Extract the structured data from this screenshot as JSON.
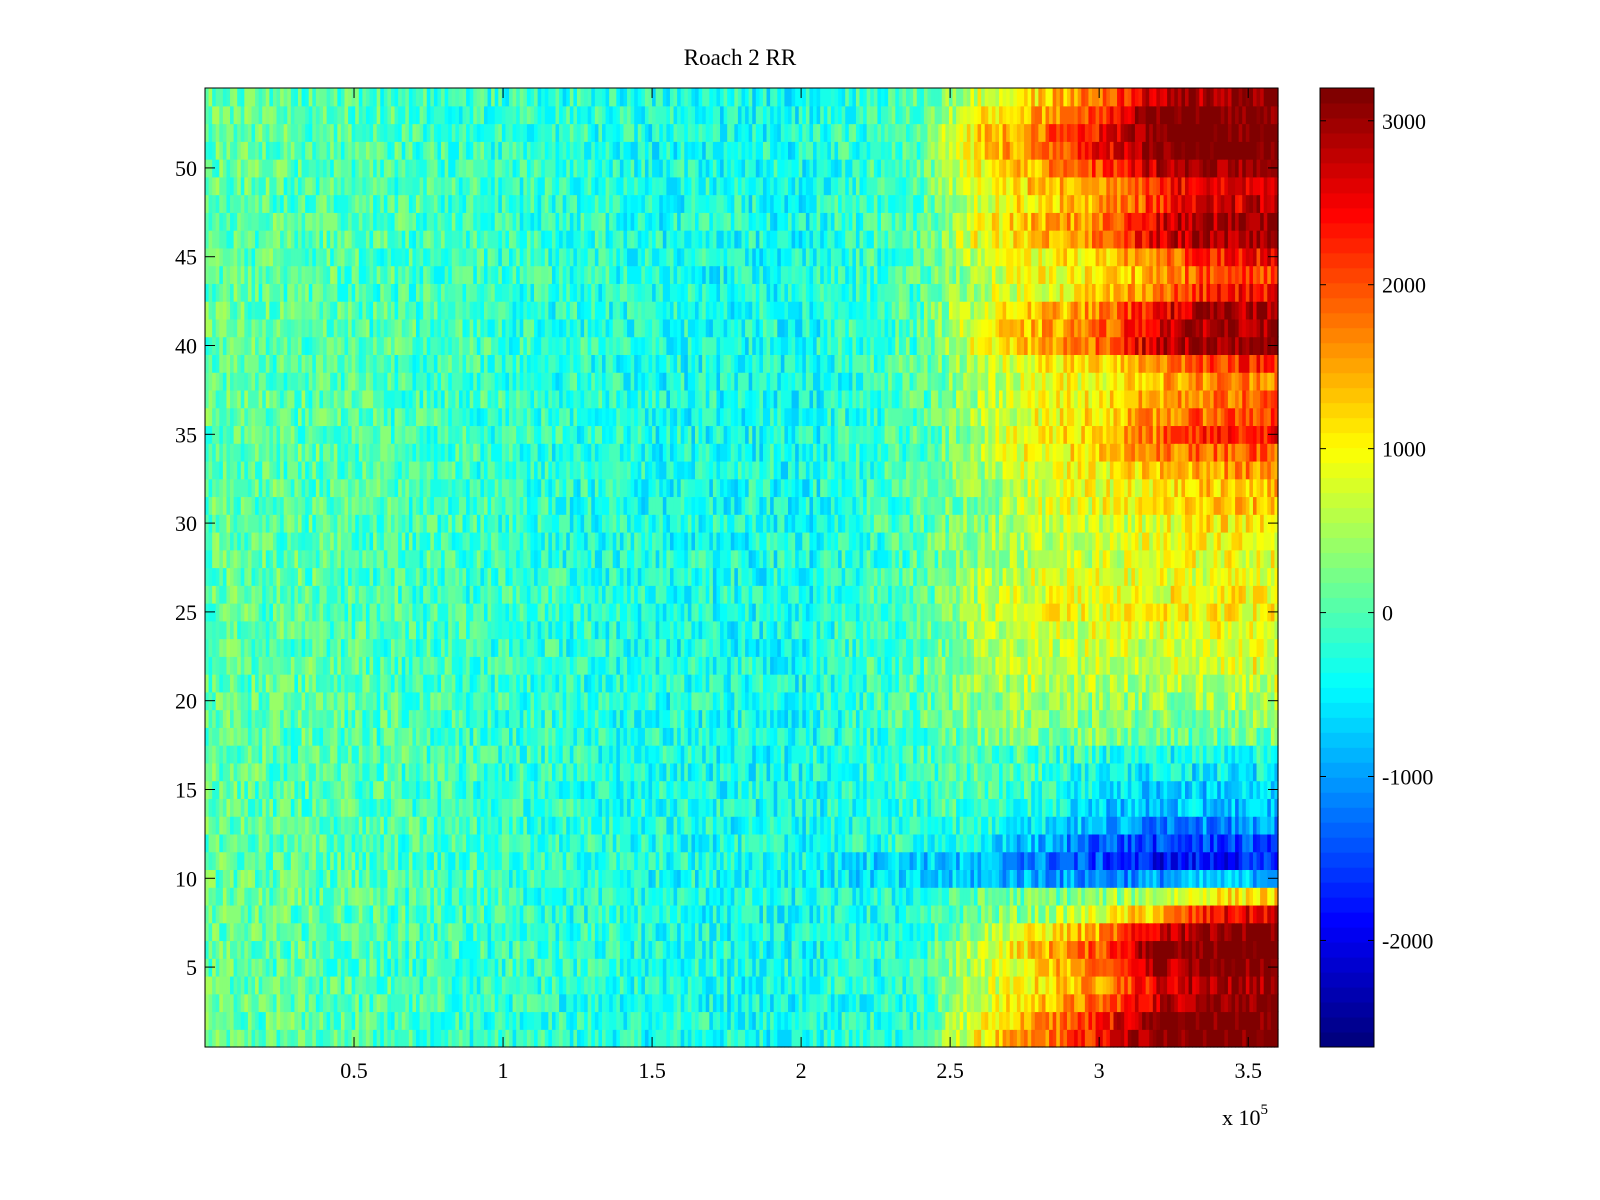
{
  "chart_data": {
    "type": "heatmap",
    "title": "Roach 2 RR",
    "xlabel": "",
    "ylabel": "",
    "x_exponent_label": "x 10",
    "x_exponent": "5",
    "xlim": [
      0,
      360000
    ],
    "ylim": [
      0.5,
      54.5
    ],
    "clim": [
      -2650,
      3200
    ],
    "colormap": "jet",
    "x_ticks": [
      50000,
      100000,
      150000,
      200000,
      250000,
      300000,
      350000
    ],
    "x_tick_labels": [
      "0.5",
      "1",
      "1.5",
      "2",
      "2.5",
      "3",
      "3.5"
    ],
    "y_ticks": [
      5,
      10,
      15,
      20,
      25,
      30,
      35,
      40,
      45,
      50
    ],
    "y_tick_labels": [
      "5",
      "10",
      "15",
      "20",
      "25",
      "30",
      "35",
      "40",
      "45",
      "50"
    ],
    "colorbar_ticks": [
      -2000,
      -1000,
      0,
      1000,
      2000,
      3000
    ],
    "colorbar_tick_labels": [
      "-2000",
      "-1000",
      "0",
      "1000",
      "2000",
      "3000"
    ],
    "rows": 54,
    "baseline_x": [
      0,
      50000,
      100000,
      150000,
      200000
    ],
    "baseline_values": [
      100,
      0,
      -150,
      -300,
      -350
    ],
    "tail_x": [
      240000,
      260000,
      280000,
      300000,
      320000,
      340000,
      360000
    ],
    "row_tail_values": [
      [
        -100,
        1000,
        1700,
        2300,
        3300,
        3300,
        3300
      ],
      [
        -100,
        900,
        1600,
        2200,
        3300,
        3300,
        3300
      ],
      [
        -150,
        700,
        1300,
        1800,
        2800,
        3200,
        3300
      ],
      [
        -150,
        600,
        1100,
        1600,
        2600,
        3000,
        3100
      ],
      [
        -150,
        600,
        1200,
        1700,
        2900,
        3200,
        3300
      ],
      [
        -200,
        700,
        1400,
        2000,
        3300,
        3300,
        3300
      ],
      [
        -250,
        500,
        1000,
        1500,
        2700,
        3200,
        3300
      ],
      [
        -300,
        200,
        400,
        800,
        1400,
        2400,
        2600
      ],
      [
        -300,
        100,
        200,
        300,
        600,
        1100,
        1200
      ],
      [
        -800,
        -800,
        -900,
        -1100,
        -1000,
        -800,
        -800
      ],
      [
        -700,
        -900,
        -1200,
        -1500,
        -1900,
        -1800,
        -1700
      ],
      [
        -200,
        -500,
        -900,
        -1300,
        -1600,
        -1500,
        -1500
      ],
      [
        -200,
        -200,
        -500,
        -900,
        -1100,
        -1100,
        -1100
      ],
      [
        -150,
        -100,
        -300,
        -700,
        -800,
        -800,
        -800
      ],
      [
        -100,
        0,
        -200,
        -500,
        -700,
        -700,
        -700
      ],
      [
        -100,
        0,
        -100,
        -400,
        -500,
        -500,
        -500
      ],
      [
        -100,
        0,
        -100,
        -200,
        -300,
        -300,
        -300
      ],
      [
        -50,
        200,
        300,
        200,
        100,
        100,
        200
      ],
      [
        0,
        300,
        400,
        300,
        300,
        300,
        400
      ],
      [
        0,
        400,
        500,
        400,
        400,
        500,
        600
      ],
      [
        0,
        400,
        600,
        500,
        500,
        600,
        700
      ],
      [
        0,
        500,
        700,
        700,
        800,
        800,
        900
      ],
      [
        0,
        500,
        700,
        700,
        700,
        800,
        900
      ],
      [
        0,
        500,
        800,
        800,
        800,
        900,
        900
      ],
      [
        0,
        600,
        900,
        900,
        1000,
        1000,
        1000
      ],
      [
        0,
        500,
        800,
        900,
        900,
        1000,
        1000
      ],
      [
        0,
        500,
        700,
        800,
        800,
        900,
        900
      ],
      [
        0,
        400,
        600,
        700,
        800,
        900,
        900
      ],
      [
        0,
        400,
        600,
        700,
        900,
        1000,
        1000
      ],
      [
        0,
        300,
        600,
        700,
        900,
        1100,
        1100
      ],
      [
        0,
        300,
        700,
        900,
        1100,
        1300,
        1300
      ],
      [
        0,
        300,
        700,
        900,
        1100,
        1300,
        1400
      ],
      [
        0,
        400,
        800,
        1000,
        1300,
        1600,
        1700
      ],
      [
        0,
        500,
        1000,
        1200,
        1700,
        1900,
        2000
      ],
      [
        0,
        500,
        1000,
        1300,
        1800,
        2300,
        2400
      ],
      [
        0,
        500,
        900,
        1200,
        1600,
        2000,
        2100
      ],
      [
        0,
        500,
        900,
        1100,
        1500,
        1800,
        1900
      ],
      [
        0,
        500,
        900,
        1000,
        1400,
        1700,
        1800
      ],
      [
        0,
        600,
        1000,
        1200,
        1700,
        2200,
        2300
      ],
      [
        0,
        900,
        1500,
        1900,
        2800,
        3000,
        3100
      ],
      [
        0,
        900,
        1400,
        1800,
        2700,
        3000,
        3100
      ],
      [
        0,
        800,
        1300,
        1600,
        2500,
        2900,
        3000
      ],
      [
        0,
        600,
        900,
        1200,
        1800,
        2300,
        2400
      ],
      [
        0,
        600,
        900,
        1100,
        1600,
        2000,
        2100
      ],
      [
        0,
        700,
        1000,
        1200,
        1800,
        2300,
        2500
      ],
      [
        0,
        900,
        1400,
        1800,
        2600,
        3000,
        3100
      ],
      [
        0,
        900,
        1400,
        1700,
        2600,
        3000,
        3100
      ],
      [
        0,
        800,
        1200,
        1500,
        2200,
        2600,
        2800
      ],
      [
        0,
        900,
        1300,
        1500,
        2400,
        2600,
        2800
      ],
      [
        0,
        1000,
        1500,
        2000,
        2800,
        3000,
        3200
      ],
      [
        0,
        1200,
        1800,
        2400,
        3300,
        3300,
        3300
      ],
      [
        0,
        1300,
        1800,
        2400,
        3300,
        3300,
        3300
      ],
      [
        0,
        1000,
        1500,
        2200,
        3300,
        3300,
        3300
      ],
      [
        0,
        700,
        1200,
        1800,
        2700,
        3000,
        3200
      ]
    ],
    "noise_amplitude": 450,
    "grid": false,
    "legend": "colorbar-right"
  }
}
